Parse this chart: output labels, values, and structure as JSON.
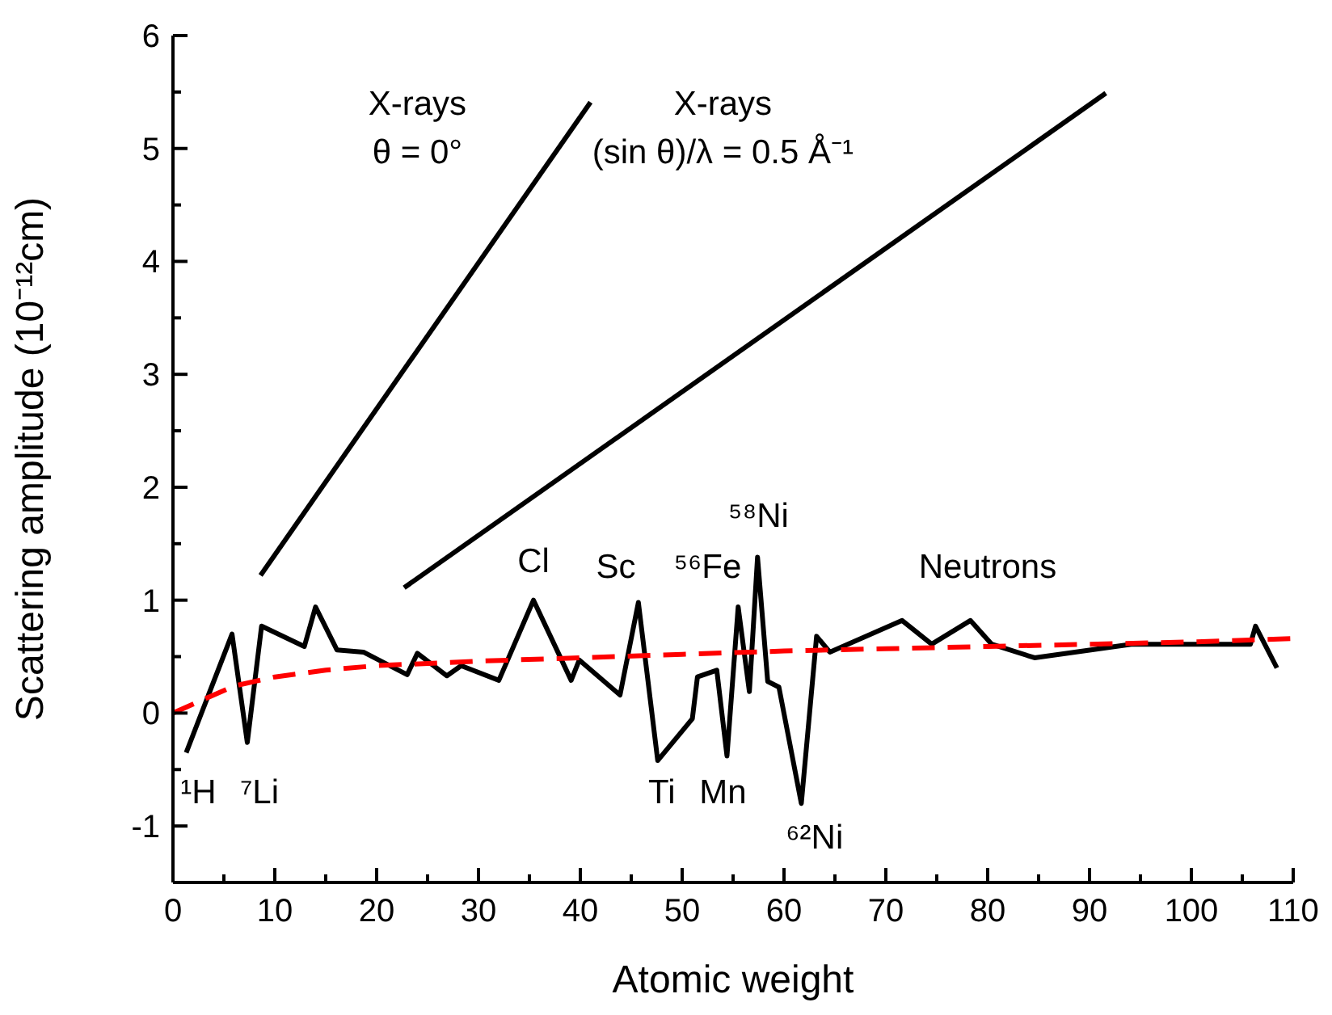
{
  "chart_data": {
    "type": "line",
    "xlabel": "Atomic weight",
    "ylabel": "Scattering amplitude (10⁻¹²cm)",
    "xlim": [
      0,
      110
    ],
    "ylim": [
      -1.5,
      6
    ],
    "xticks": [
      0,
      {
        "value": 5,
        "label": null
      },
      10,
      {
        "value": 15,
        "label": null
      },
      20,
      {
        "value": 25,
        "label": null
      },
      30,
      {
        "value": 35,
        "label": null
      },
      40,
      {
        "value": 45,
        "label": null
      },
      50,
      {
        "value": 55,
        "label": null
      },
      60,
      {
        "value": 65,
        "label": null
      },
      70,
      {
        "value": 75,
        "label": null
      },
      80,
      {
        "value": 85,
        "label": null
      },
      90,
      {
        "value": 95,
        "label": null
      },
      100,
      {
        "value": 105,
        "label": null
      },
      110
    ],
    "yticks": [
      {
        "value": -1.5,
        "label": null
      },
      -1,
      {
        "value": -0.5,
        "label": null
      },
      0,
      {
        "value": 0.5,
        "label": null
      },
      1,
      {
        "value": 1.5,
        "label": null
      },
      2,
      {
        "value": 2.5,
        "label": null
      },
      3,
      {
        "value": 3.5,
        "label": null
      },
      4,
      {
        "value": 4.5,
        "label": null
      },
      5,
      {
        "value": 5.5,
        "label": null
      },
      6
    ],
    "marker": "none",
    "series": [
      {
        "color": "#000000",
        "line_style": "solid",
        "x": [
          1.3,
          5.8,
          7.3,
          8.7,
          12.9,
          14,
          16.1,
          18.7,
          23,
          24,
          26.9,
          28.3,
          32,
          35.4,
          39.1,
          39.9,
          43.9,
          45.7,
          47.6,
          51,
          51.5,
          53.4,
          54.4,
          55.5,
          56.6,
          57.4,
          58.4,
          59.5,
          61.7,
          63.2,
          64.5,
          71.6,
          74.5,
          78.3,
          80.4,
          84.6,
          94.1,
          105.8,
          106.3,
          108.4
        ],
        "values": [
          -0.35,
          0.7,
          -0.26,
          0.77,
          0.59,
          0.94,
          0.56,
          0.54,
          0.34,
          0.53,
          0.33,
          0.42,
          0.29,
          1.0,
          0.29,
          0.47,
          0.16,
          0.98,
          -0.42,
          -0.05,
          0.32,
          0.38,
          -0.38,
          0.94,
          0.19,
          1.38,
          0.28,
          0.23,
          -0.8,
          0.68,
          0.54,
          0.82,
          0.61,
          0.82,
          0.61,
          0.49,
          0.61,
          0.61,
          0.77,
          0.4
        ]
      },
      {
        "color": "#ff0000",
        "line_style": "dashed",
        "x": [
          0,
          3,
          6,
          10,
          15,
          20,
          30,
          40,
          50,
          60,
          70,
          80,
          90,
          100,
          110
        ],
        "values": [
          0.0,
          0.12,
          0.24,
          0.32,
          0.38,
          0.42,
          0.46,
          0.49,
          0.52,
          0.55,
          0.57,
          0.59,
          0.61,
          0.63,
          0.66
        ]
      },
      {
        "color": "#000000",
        "line_style": "solid",
        "x": [
          8.6,
          41
        ],
        "values": [
          1.22,
          5.41
        ]
      },
      {
        "color": "#000000",
        "line_style": "solid",
        "x": [
          22.7,
          91.6
        ],
        "values": [
          1.11,
          5.49
        ]
      }
    ],
    "annotations": [
      "¹H",
      "⁷Li",
      "Cl",
      "Sc",
      "⁵⁶Fe",
      "⁵⁸Ni",
      "Ti",
      "Mn",
      "⁶²Ni",
      "Neutrons",
      "X-rays\nθ = 0°",
      "X-rays\n(sin θ)/λ = 0.5 Å⁻¹"
    ]
  }
}
